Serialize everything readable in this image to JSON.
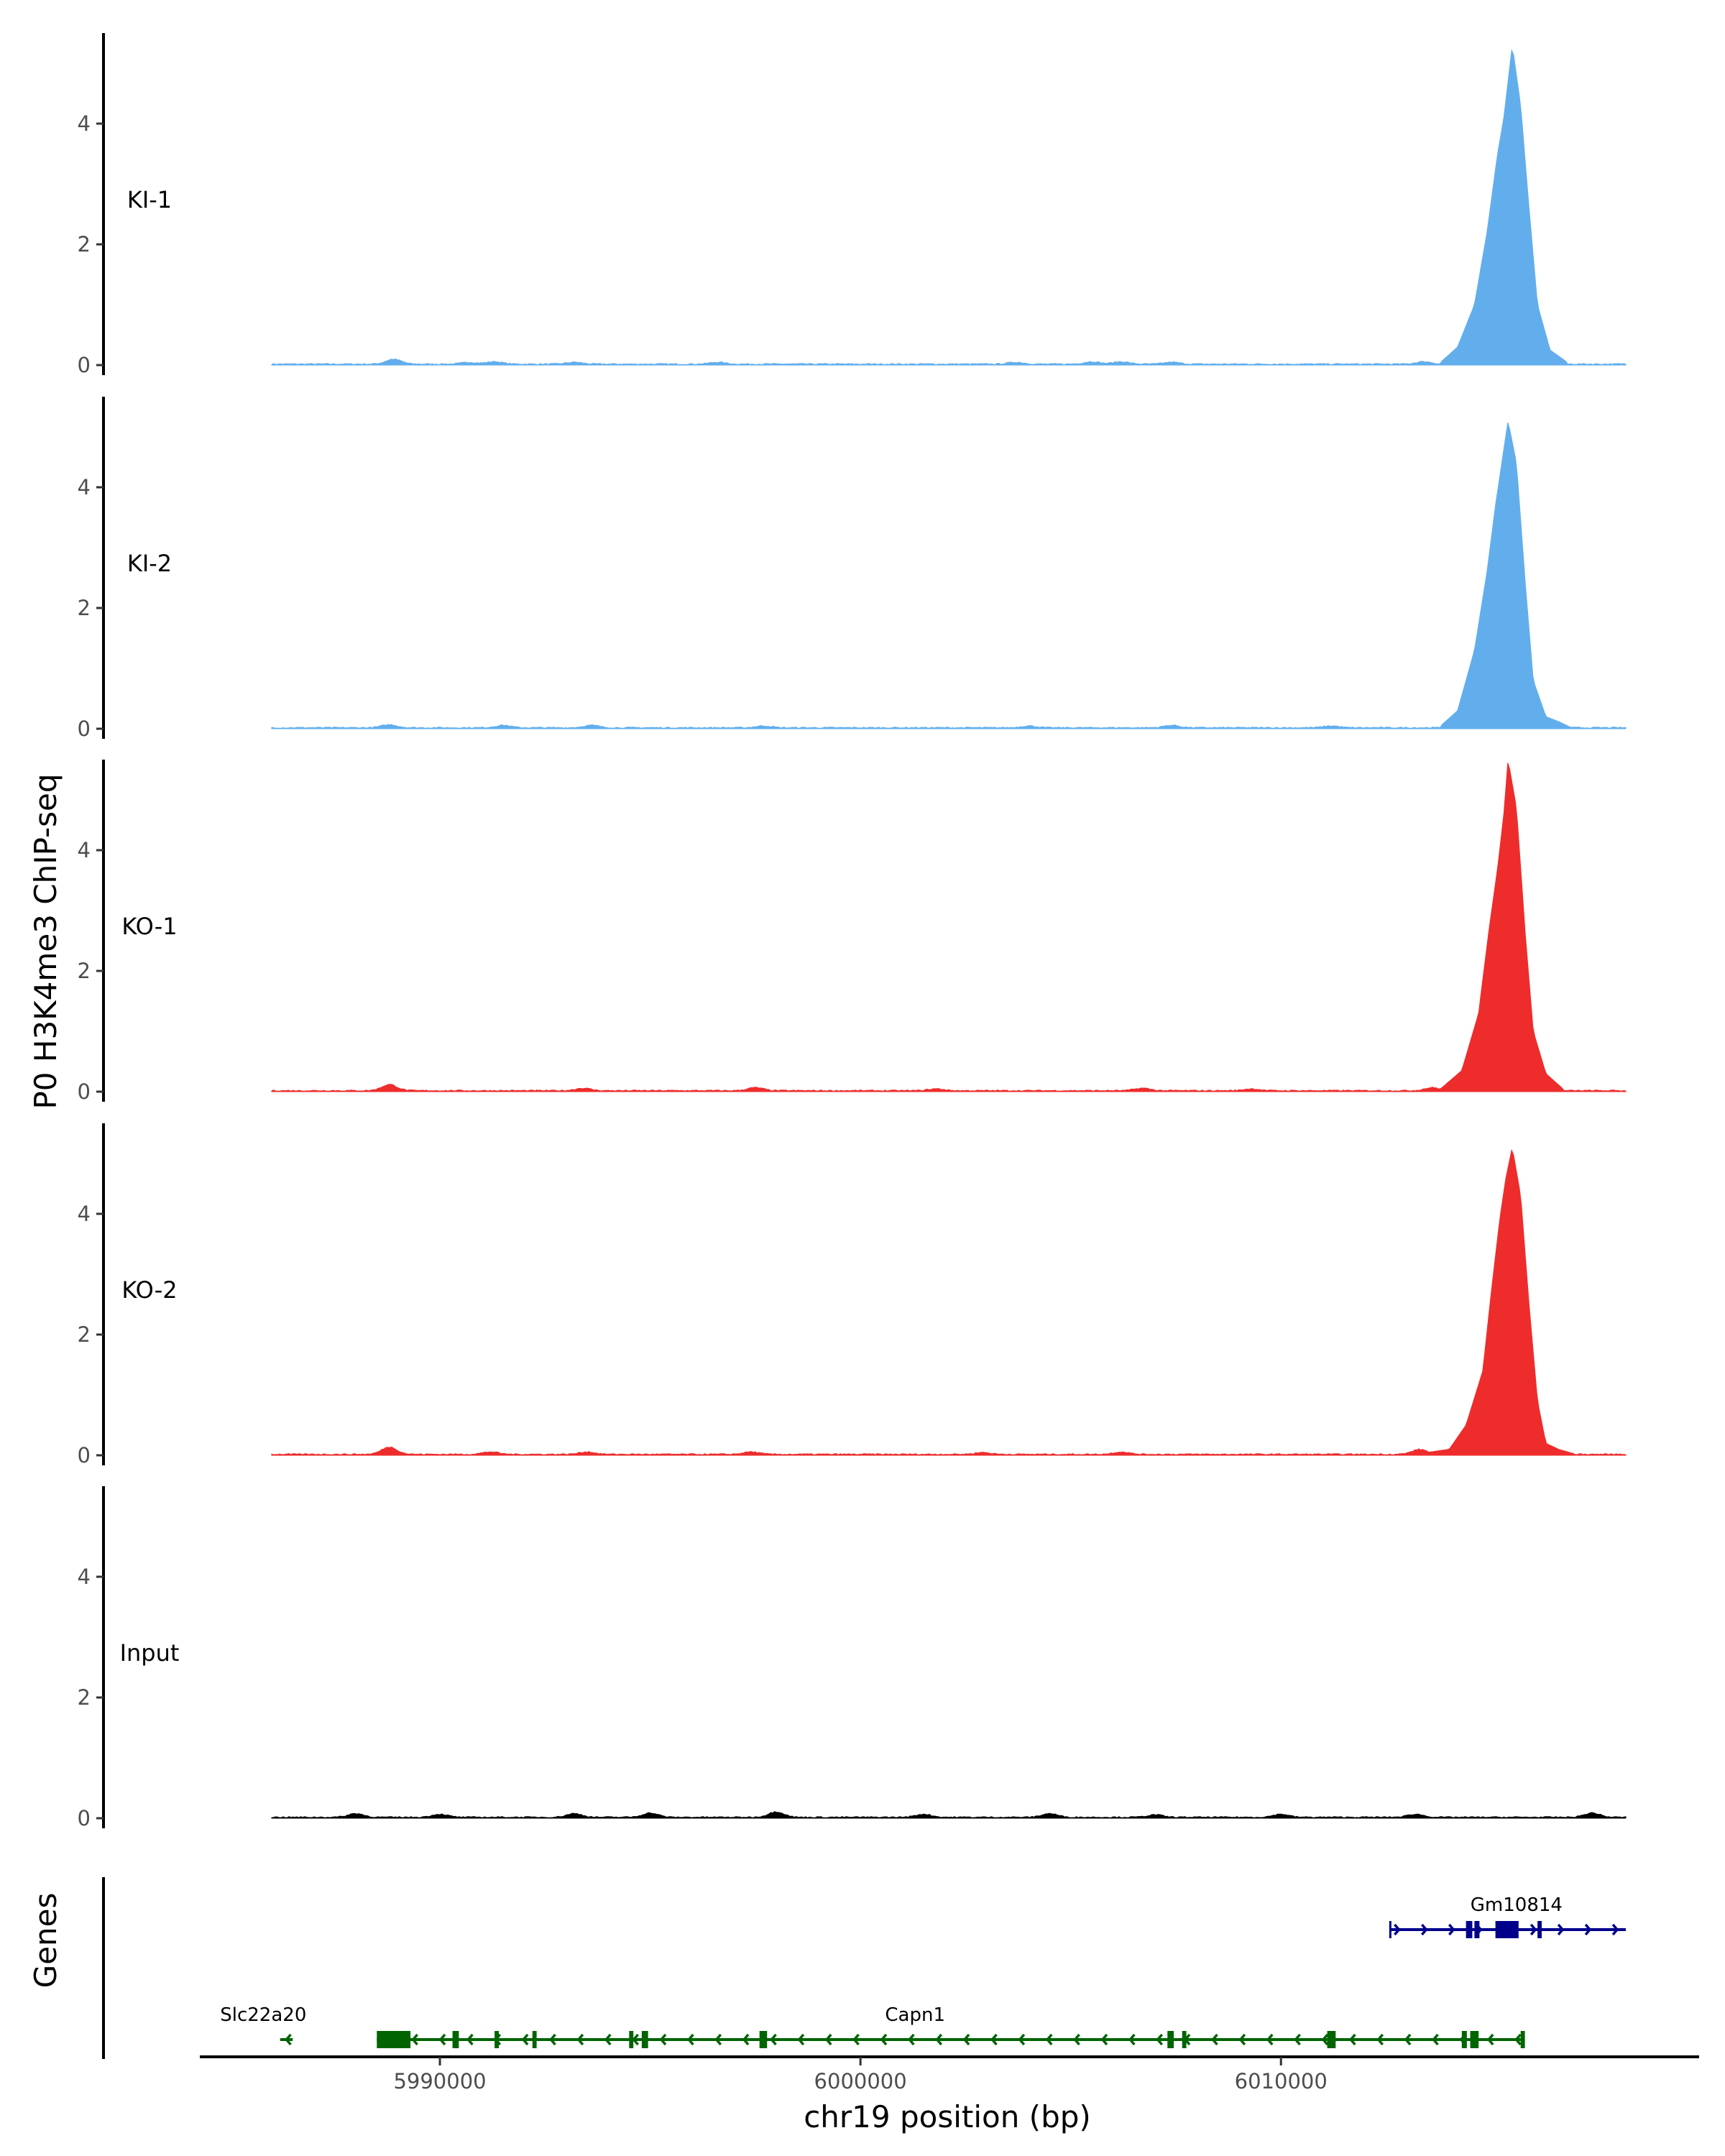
{
  "chart_data": {
    "type": "area",
    "ylabel": "P0 H3K4me3 ChIP-seq",
    "xlabel": "chr19 position (bp)",
    "xlim": [
      5984500,
      6019800
    ],
    "ylim": [
      0,
      5.5
    ],
    "yticks": [
      0,
      2,
      4
    ],
    "xticks": [
      5990000,
      6000000,
      6010000
    ],
    "xtick_labels": [
      "5990000",
      "6000000",
      "6010000"
    ],
    "tracks": [
      {
        "name": "KI-1",
        "color": "#62aeec",
        "peak_center": 6015500,
        "peak_height": 5.3,
        "profile": [
          [
            6013800,
            0.05
          ],
          [
            6014200,
            0.3
          ],
          [
            6014600,
            1.0
          ],
          [
            6014900,
            2.2
          ],
          [
            6015150,
            3.5
          ],
          [
            6015300,
            4.1
          ],
          [
            6015500,
            5.3
          ],
          [
            6015700,
            4.3
          ],
          [
            6015900,
            2.6
          ],
          [
            6016100,
            1.0
          ],
          [
            6016400,
            0.25
          ],
          [
            6016800,
            0.05
          ]
        ],
        "background_bumps": [
          [
            5988900,
            0.08
          ],
          [
            5990700,
            0.03
          ],
          [
            5991300,
            0.04
          ],
          [
            5993200,
            0.03
          ],
          [
            5996600,
            0.03
          ],
          [
            6003700,
            0.03
          ],
          [
            6005500,
            0.04
          ],
          [
            6006200,
            0.04
          ],
          [
            6007400,
            0.03
          ],
          [
            6013400,
            0.04
          ]
        ]
      },
      {
        "name": "KI-2",
        "color": "#62aeec",
        "peak_center": 6015400,
        "peak_height": 5.1,
        "profile": [
          [
            6013800,
            0.05
          ],
          [
            6014200,
            0.3
          ],
          [
            6014600,
            1.3
          ],
          [
            6014900,
            2.6
          ],
          [
            6015100,
            3.7
          ],
          [
            6015250,
            4.4
          ],
          [
            6015400,
            5.1
          ],
          [
            6015600,
            4.4
          ],
          [
            6015800,
            2.5
          ],
          [
            6016000,
            0.8
          ],
          [
            6016300,
            0.2
          ],
          [
            6016600,
            0.12
          ],
          [
            6016900,
            0.02
          ]
        ],
        "background_bumps": [
          [
            5988800,
            0.05
          ],
          [
            5991500,
            0.04
          ],
          [
            5993600,
            0.04
          ],
          [
            5997700,
            0.03
          ],
          [
            6004000,
            0.03
          ],
          [
            6007400,
            0.04
          ],
          [
            6011200,
            0.03
          ]
        ]
      },
      {
        "name": "KO-1",
        "color": "#ee2c2c",
        "peak_center": 6015400,
        "peak_height": 5.5,
        "profile": [
          [
            6013800,
            0.05
          ],
          [
            6014300,
            0.35
          ],
          [
            6014700,
            1.3
          ],
          [
            6014950,
            2.7
          ],
          [
            6015150,
            3.7
          ],
          [
            6015300,
            4.6
          ],
          [
            6015400,
            5.5
          ],
          [
            6015600,
            4.7
          ],
          [
            6015800,
            2.7
          ],
          [
            6016000,
            1.0
          ],
          [
            6016300,
            0.3
          ],
          [
            6016700,
            0.05
          ]
        ],
        "background_bumps": [
          [
            5988800,
            0.1
          ],
          [
            5993400,
            0.04
          ],
          [
            5997500,
            0.05
          ],
          [
            6001800,
            0.03
          ],
          [
            6006700,
            0.04
          ],
          [
            6009300,
            0.03
          ],
          [
            6013600,
            0.05
          ]
        ]
      },
      {
        "name": "KO-2",
        "color": "#ee2c2c",
        "peak_center": 6015500,
        "peak_height": 5.1,
        "profile": [
          [
            6013500,
            0.05
          ],
          [
            6014000,
            0.1
          ],
          [
            6014400,
            0.5
          ],
          [
            6014800,
            1.4
          ],
          [
            6015000,
            2.7
          ],
          [
            6015200,
            3.9
          ],
          [
            6015350,
            4.6
          ],
          [
            6015500,
            5.1
          ],
          [
            6015700,
            4.3
          ],
          [
            6015900,
            2.5
          ],
          [
            6016100,
            0.9
          ],
          [
            6016300,
            0.2
          ],
          [
            6016600,
            0.1
          ],
          [
            6017000,
            0.02
          ]
        ],
        "background_bumps": [
          [
            5988800,
            0.12
          ],
          [
            5991200,
            0.04
          ],
          [
            5993500,
            0.04
          ],
          [
            5997400,
            0.04
          ],
          [
            6002900,
            0.03
          ],
          [
            6006200,
            0.04
          ],
          [
            6013300,
            0.08
          ]
        ]
      },
      {
        "name": "Input",
        "color": "#000000",
        "peak_center": null,
        "peak_height": 0.1,
        "profile": [],
        "background_bumps": [
          [
            5988000,
            0.06
          ],
          [
            5990000,
            0.05
          ],
          [
            5993200,
            0.06
          ],
          [
            5995000,
            0.07
          ],
          [
            5998000,
            0.09
          ],
          [
            6001500,
            0.05
          ],
          [
            6004500,
            0.06
          ],
          [
            6007000,
            0.04
          ],
          [
            6010000,
            0.05
          ],
          [
            6013200,
            0.05
          ],
          [
            6017400,
            0.07
          ]
        ]
      }
    ],
    "genes_label": "Genes",
    "genes": [
      {
        "name": "Gm10814",
        "strand": "+",
        "color": "#00008b",
        "start": 6012600,
        "end": 6018200,
        "row": 0,
        "exons": [
          [
            6014400,
            6014550
          ],
          [
            6014600,
            6014720
          ],
          [
            6015100,
            6015650
          ],
          [
            6016100,
            6016200
          ]
        ]
      },
      {
        "name": "Capn1",
        "strand": "-",
        "color": "#006400",
        "start": 5988500,
        "end": 6015800,
        "row": 1,
        "exons": [
          [
            5988500,
            5989300
          ],
          [
            5990300,
            5990450
          ],
          [
            5991300,
            5991400
          ],
          [
            5992200,
            5992300
          ],
          [
            5994500,
            5994600
          ],
          [
            5994800,
            5994950
          ],
          [
            5997600,
            5997780
          ],
          [
            6007300,
            6007450
          ],
          [
            6007650,
            6007750
          ],
          [
            6011100,
            6011300
          ],
          [
            6014300,
            6014420
          ],
          [
            6014500,
            6014700
          ],
          [
            6015700,
            6015800
          ]
        ]
      },
      {
        "name": "Slc22a20",
        "strand": "-",
        "color": "#006400",
        "start": 5986200,
        "end": 5986500,
        "row": 1,
        "exons": []
      }
    ]
  }
}
